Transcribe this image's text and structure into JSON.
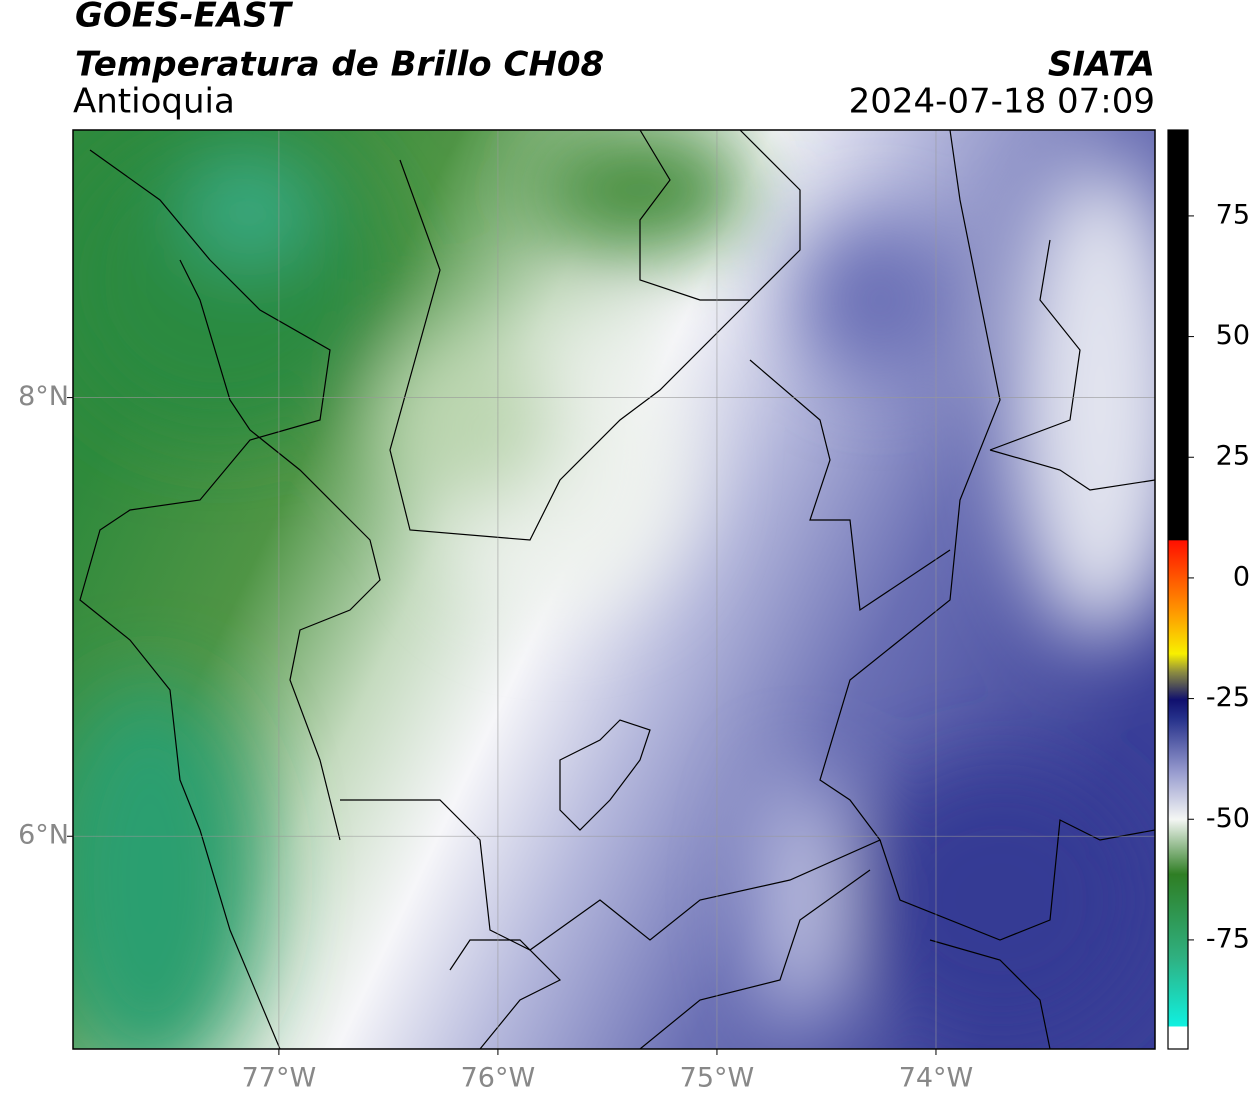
{
  "header": {
    "satellite": "GOES-EAST",
    "product": "Temperatura de Brillo CH08",
    "region": "Antioquia",
    "agency": "SIATA",
    "datetime": "2024-07-18 07:09"
  },
  "map": {
    "xlim": [
      -77.94,
      -73.0
    ],
    "ylim": [
      5.03,
      9.22
    ],
    "grid": true,
    "xticks": [
      {
        "value": -77,
        "label": "77°W"
      },
      {
        "value": -76,
        "label": "76°W"
      },
      {
        "value": -75,
        "label": "75°W"
      },
      {
        "value": -74,
        "label": "74°W"
      }
    ],
    "yticks": [
      {
        "value": 8,
        "label": "8°N"
      },
      {
        "value": 6,
        "label": "6°N"
      }
    ]
  },
  "colorbar": {
    "lim": [
      -97.6,
      92.8
    ],
    "ticks": [
      75,
      50,
      25,
      0,
      -25,
      -50,
      -75
    ]
  }
}
